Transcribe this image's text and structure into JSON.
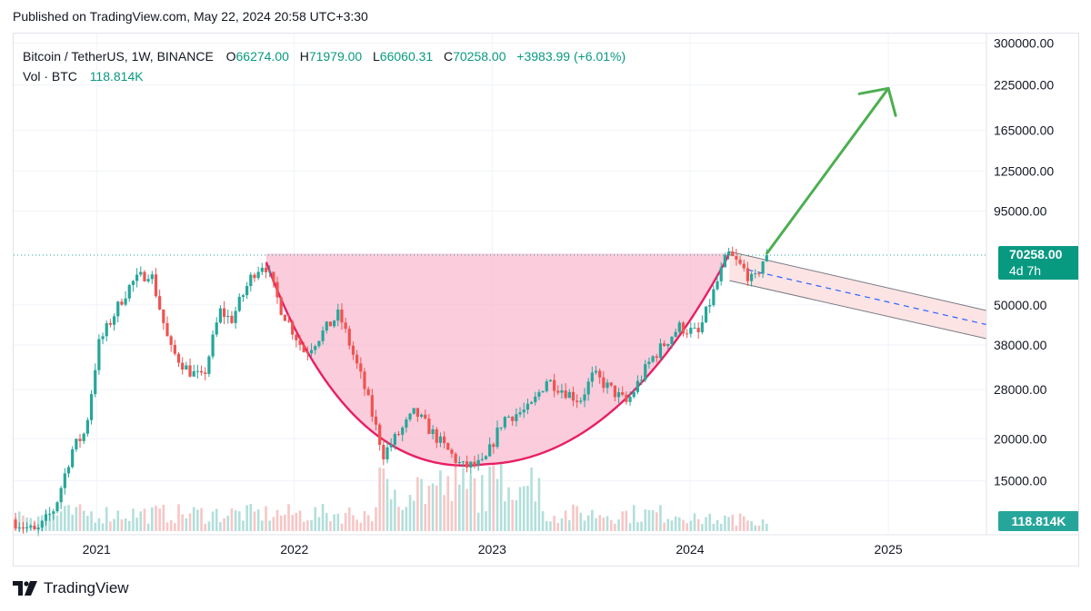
{
  "header": {
    "published": "Published on TradingView.com, May 22, 2024 20:58 UTC+3:30"
  },
  "legend": {
    "symbol": "Bitcoin / TetherUS, 1W, BINANCE",
    "open_label": "O",
    "open": "66274.00",
    "high_label": "H",
    "high": "71979.00",
    "low_label": "L",
    "low": "66060.31",
    "close_label": "C",
    "close": "70258.00",
    "change": "+3983.99 (+6.01%)",
    "vol_label": "Vol · BTC",
    "vol": "118.814K"
  },
  "price_tag": {
    "value": "70258.00",
    "countdown": "4d 7h"
  },
  "volume_tag": "118.814K",
  "brand": {
    "name": "TradingView"
  },
  "colors": {
    "up": "#26a69a",
    "down": "#ef5350",
    "cup_fill": "#f8bbd0",
    "cup_line": "#e91e63",
    "arrow": "#4caf50",
    "channel_fill": "#fde4e4",
    "channel_dash": "#2962ff",
    "grid": "#f0f3fa"
  },
  "chart_data": {
    "type": "candlestick",
    "symbol": "Bitcoin / TetherUS",
    "interval": "1W",
    "exchange": "BINANCE",
    "y_scale": "log",
    "y_ticks": [
      15000,
      20000,
      28000,
      38000,
      50000,
      70258,
      95000,
      125000,
      165000,
      225000,
      300000
    ],
    "y_tick_labels": [
      "15000.00",
      "20000.00",
      "28000.00",
      "38000.00",
      "50000.00",
      "70258.00",
      "95000.00",
      "125000.00",
      "165000.00",
      "225000.00",
      "300000.00"
    ],
    "x_tick_labels": [
      "2021",
      "2022",
      "2023",
      "2024",
      "2025"
    ],
    "x_range": [
      "2020-08-01",
      "2025-07-01"
    ],
    "y_range": [
      10500,
      320000
    ],
    "last_close": 70258,
    "price_path": [
      [
        "2020-08-01",
        11500
      ],
      [
        "2020-09-15",
        10500
      ],
      [
        "2020-10-20",
        12500
      ],
      [
        "2020-11-20",
        18500
      ],
      [
        "2020-12-15",
        21000
      ],
      [
        "2021-01-08",
        38000
      ],
      [
        "2021-02-20",
        52000
      ],
      [
        "2021-03-10",
        58000
      ],
      [
        "2021-04-14",
        63000
      ],
      [
        "2021-05-20",
        37000
      ],
      [
        "2021-06-22",
        32000
      ],
      [
        "2021-07-20",
        30000
      ],
      [
        "2021-08-20",
        48000
      ],
      [
        "2021-09-10",
        45000
      ],
      [
        "2021-10-20",
        62000
      ],
      [
        "2021-11-10",
        67000
      ],
      [
        "2021-12-10",
        49000
      ],
      [
        "2022-01-24",
        36000
      ],
      [
        "2022-03-28",
        47000
      ],
      [
        "2022-05-12",
        29000
      ],
      [
        "2022-06-18",
        18000
      ],
      [
        "2022-08-15",
        24000
      ],
      [
        "2022-10-01",
        19500
      ],
      [
        "2022-11-10",
        16500
      ],
      [
        "2022-12-20",
        16800
      ],
      [
        "2023-01-25",
        23000
      ],
      [
        "2023-03-15",
        24500
      ],
      [
        "2023-04-15",
        30000
      ],
      [
        "2023-06-15",
        26000
      ],
      [
        "2023-07-10",
        31000
      ],
      [
        "2023-09-10",
        25500
      ],
      [
        "2023-10-25",
        34500
      ],
      [
        "2023-12-15",
        43000
      ],
      [
        "2024-01-20",
        41000
      ],
      [
        "2024-02-28",
        61000
      ],
      [
        "2024-03-14",
        71000
      ],
      [
        "2024-04-15",
        63000
      ],
      [
        "2024-05-01",
        58000
      ],
      [
        "2024-05-22",
        70258
      ]
    ],
    "volume_note": "weekly volume histogram along bottom",
    "annotations": [
      {
        "type": "cup",
        "from": [
          "2021-11-10",
          67000
        ],
        "bottom": [
          "2022-12-20",
          16800
        ],
        "to": [
          "2024-03-14",
          71000
        ]
      },
      {
        "type": "descending-channel",
        "from": "2024-03-14",
        "to": "2025-07-01"
      },
      {
        "type": "arrow",
        "from": [
          "2024-05-22",
          70258
        ],
        "to": [
          "2025-01-01",
          220000
        ]
      }
    ]
  }
}
